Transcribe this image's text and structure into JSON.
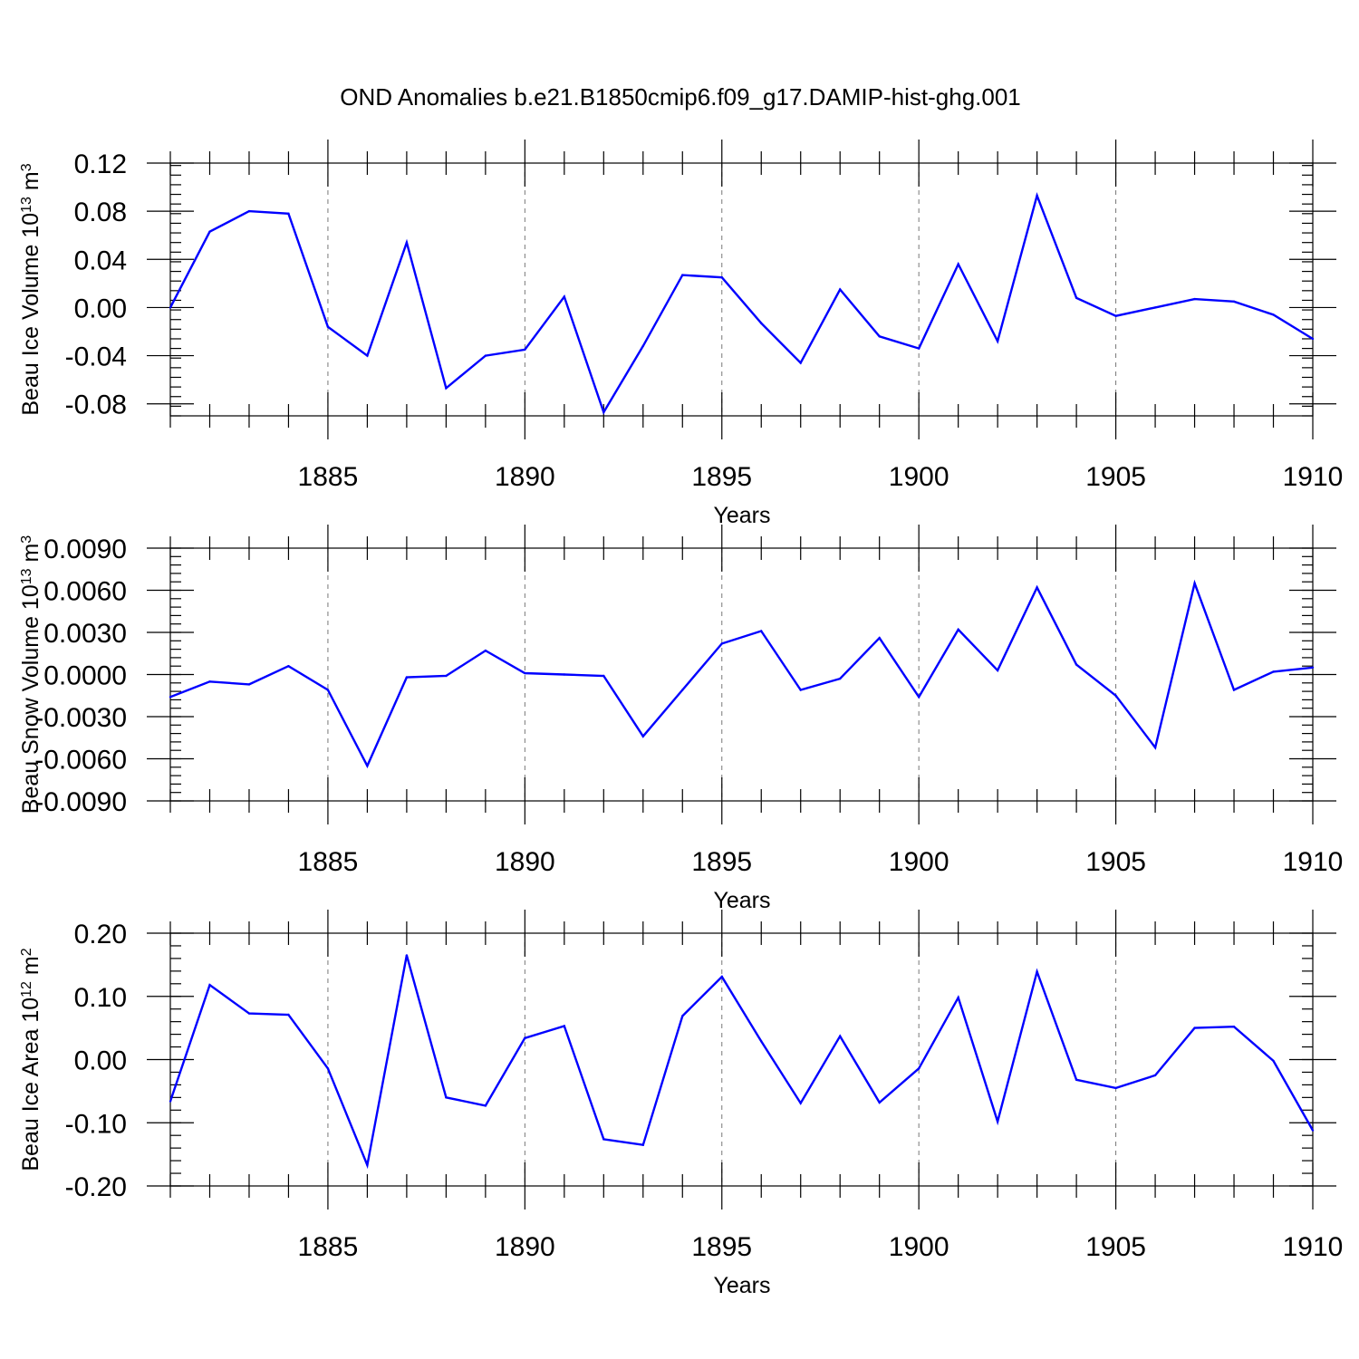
{
  "title": "OND Anomalies b.e21.B1850cmip6.f09_g17.DAMIP-hist-ghg.001",
  "colors": {
    "series": "#0000ff",
    "grid": "#777777"
  },
  "chart_data": [
    {
      "type": "line",
      "ylabel": {
        "text": "Beau Ice Volume 10",
        "sup": "13",
        "unit": " m",
        "unit_sup": "3"
      },
      "xlabel": "Years",
      "xlim": [
        1881,
        1910
      ],
      "ylim": [
        -0.09,
        0.12
      ],
      "yticks": [
        -0.08,
        -0.04,
        0.0,
        0.04,
        0.08,
        0.12
      ],
      "ytick_labels": [
        "-0.08",
        "-0.04",
        "0.00",
        "0.04",
        "0.08",
        "0.12"
      ],
      "xticks": [
        1885,
        1890,
        1895,
        1900,
        1905,
        1910
      ],
      "xtick_labels": [
        "1885",
        "1890",
        "1895",
        "1900",
        "1905",
        "1910"
      ],
      "grid": "vertical dashed at major x ticks",
      "x": [
        1881,
        1882,
        1883,
        1884,
        1885,
        1886,
        1887,
        1888,
        1889,
        1890,
        1891,
        1892,
        1893,
        1894,
        1895,
        1896,
        1897,
        1898,
        1899,
        1900,
        1901,
        1902,
        1903,
        1904,
        1905,
        1906,
        1907,
        1908,
        1909,
        1910
      ],
      "y": [
        0.0,
        0.063,
        0.08,
        0.078,
        -0.016,
        -0.04,
        0.054,
        -0.067,
        -0.04,
        -0.035,
        0.009,
        -0.087,
        -0.032,
        0.027,
        0.025,
        -0.013,
        -0.046,
        0.015,
        -0.024,
        -0.034,
        0.036,
        -0.028,
        0.093,
        0.008,
        -0.007,
        0.0,
        0.007,
        0.005,
        -0.006,
        -0.026
      ]
    },
    {
      "type": "line",
      "ylabel": {
        "text": "Beau Snow Volume 10",
        "sup": "13",
        "unit": " m",
        "unit_sup": "3"
      },
      "xlabel": "Years",
      "xlim": [
        1881,
        1910
      ],
      "ylim": [
        -0.009,
        0.009
      ],
      "yticks": [
        -0.009,
        -0.006,
        -0.003,
        0.0,
        0.003,
        0.006,
        0.009
      ],
      "ytick_labels": [
        "-0.0090",
        "-0.0060",
        "-0.0030",
        "0.0000",
        "0.0030",
        "0.0060",
        "0.0090"
      ],
      "xticks": [
        1885,
        1890,
        1895,
        1900,
        1905,
        1910
      ],
      "xtick_labels": [
        "1885",
        "1890",
        "1895",
        "1900",
        "1905",
        "1910"
      ],
      "grid": "vertical dashed at major x ticks",
      "x": [
        1881,
        1882,
        1883,
        1884,
        1885,
        1886,
        1887,
        1888,
        1889,
        1890,
        1891,
        1892,
        1893,
        1894,
        1895,
        1896,
        1897,
        1898,
        1899,
        1900,
        1901,
        1902,
        1903,
        1904,
        1905,
        1906,
        1907,
        1908,
        1909,
        1910
      ],
      "y": [
        -0.0016,
        -0.0005,
        -0.0007,
        0.0006,
        -0.0011,
        -0.0065,
        -0.0002,
        -0.0001,
        0.0017,
        0.0001,
        0.0,
        -0.0001,
        -0.0044,
        -0.0011,
        0.0022,
        0.0031,
        -0.0011,
        -0.0003,
        0.0026,
        -0.0016,
        0.0032,
        0.0003,
        0.0062,
        0.0007,
        -0.0015,
        -0.0052,
        0.0065,
        -0.0011,
        0.0002,
        0.0005
      ]
    },
    {
      "type": "line",
      "ylabel": {
        "text": "Beau Ice Area 10",
        "sup": "12",
        "unit": " m",
        "unit_sup": "2"
      },
      "xlabel": "Years",
      "xlim": [
        1881,
        1910
      ],
      "ylim": [
        -0.2,
        0.2
      ],
      "yticks": [
        -0.2,
        -0.1,
        0.0,
        0.1,
        0.2
      ],
      "ytick_labels": [
        "-0.20",
        "-0.10",
        "0.00",
        "0.10",
        "0.20"
      ],
      "xticks": [
        1885,
        1890,
        1895,
        1900,
        1905,
        1910
      ],
      "xtick_labels": [
        "1885",
        "1890",
        "1895",
        "1900",
        "1905",
        "1910"
      ],
      "grid": "vertical dashed at major x ticks",
      "x": [
        1881,
        1882,
        1883,
        1884,
        1885,
        1886,
        1887,
        1888,
        1889,
        1890,
        1891,
        1892,
        1893,
        1894,
        1895,
        1896,
        1897,
        1898,
        1899,
        1900,
        1901,
        1902,
        1903,
        1904,
        1905,
        1906,
        1907,
        1908,
        1909,
        1910
      ],
      "y": [
        -0.066,
        0.118,
        0.073,
        0.071,
        -0.014,
        -0.167,
        0.165,
        -0.06,
        -0.073,
        0.034,
        0.053,
        -0.126,
        -0.135,
        0.069,
        0.131,
        0.029,
        -0.069,
        0.037,
        -0.068,
        -0.014,
        0.098,
        -0.098,
        0.139,
        -0.032,
        -0.045,
        -0.025,
        0.05,
        0.052,
        -0.002,
        -0.112
      ]
    }
  ]
}
